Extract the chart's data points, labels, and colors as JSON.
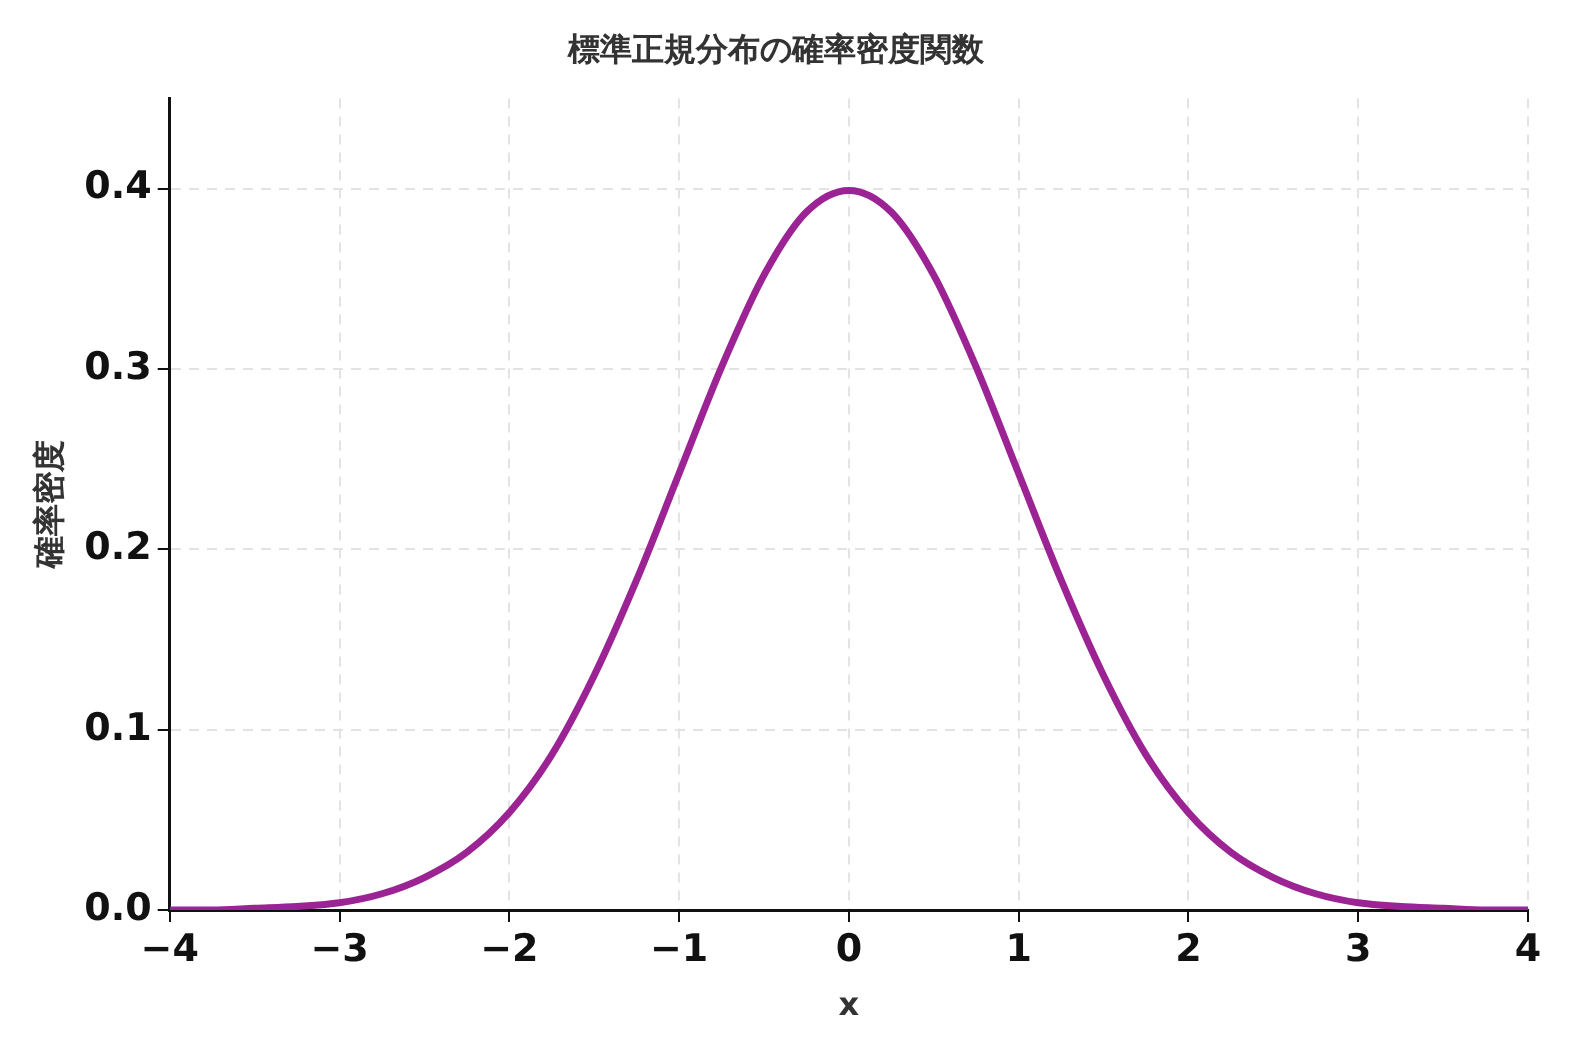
{
  "chart_data": {
    "type": "line",
    "title": "標準正規分布の確率密度関数",
    "xlabel": "x",
    "ylabel": "確率密度",
    "x": [
      -4,
      -3.75,
      -3.5,
      -3.25,
      -3,
      -2.75,
      -2.5,
      -2.25,
      -2,
      -1.75,
      -1.5,
      -1.25,
      -1,
      -0.75,
      -0.5,
      -0.25,
      0,
      0.25,
      0.5,
      0.75,
      1,
      1.25,
      1.5,
      1.75,
      2,
      2.25,
      2.5,
      2.75,
      3,
      3.25,
      3.5,
      3.75,
      4
    ],
    "series": [
      {
        "color": "#9b2393",
        "values": [
          0.0,
          0.0,
          0.001,
          0.002,
          0.004,
          0.009,
          0.018,
          0.032,
          0.054,
          0.086,
          0.13,
          0.183,
          0.242,
          0.301,
          0.352,
          0.387,
          0.399,
          0.387,
          0.352,
          0.301,
          0.242,
          0.183,
          0.13,
          0.086,
          0.054,
          0.032,
          0.018,
          0.009,
          0.004,
          0.002,
          0.001,
          0.0,
          0.0
        ]
      }
    ],
    "xlim": [
      -4,
      4
    ],
    "ylim": [
      0,
      0.45
    ],
    "xticks": [
      {
        "value": -4,
        "label": "−4"
      },
      {
        "value": -3,
        "label": "−3"
      },
      {
        "value": -2,
        "label": "−2"
      },
      {
        "value": -1,
        "label": "−1"
      },
      0,
      1,
      2,
      3,
      4
    ],
    "yticks": [
      {
        "value": 0,
        "label": "0.0"
      },
      {
        "value": 0.1,
        "label": "0.1"
      },
      {
        "value": 0.2,
        "label": "0.2"
      },
      {
        "value": 0.3,
        "label": "0.3"
      },
      {
        "value": 0.4,
        "label": "0.4"
      }
    ],
    "grid": true,
    "marker": "none"
  }
}
